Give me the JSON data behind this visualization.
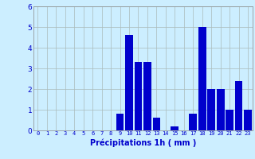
{
  "hours": [
    0,
    1,
    2,
    3,
    4,
    5,
    6,
    7,
    8,
    9,
    10,
    11,
    12,
    13,
    14,
    15,
    16,
    17,
    18,
    19,
    20,
    21,
    22,
    23
  ],
  "values": [
    0,
    0,
    0,
    0,
    0,
    0,
    0,
    0,
    0,
    0.8,
    4.6,
    3.3,
    3.3,
    0.6,
    0,
    0.2,
    0,
    0.8,
    5.0,
    2.0,
    2.0,
    1.0,
    2.4,
    1.0
  ],
  "bar_color": "#0000cc",
  "background_color": "#cceeff",
  "grid_color": "#aabbbb",
  "xlabel": "Précipitations 1h ( mm )",
  "xlabel_color": "#0000cc",
  "tick_color": "#0000cc",
  "ylim": [
    0,
    6
  ],
  "yticks": [
    0,
    1,
    2,
    3,
    4,
    5,
    6
  ],
  "figsize": [
    3.2,
    2.0
  ],
  "dpi": 100
}
